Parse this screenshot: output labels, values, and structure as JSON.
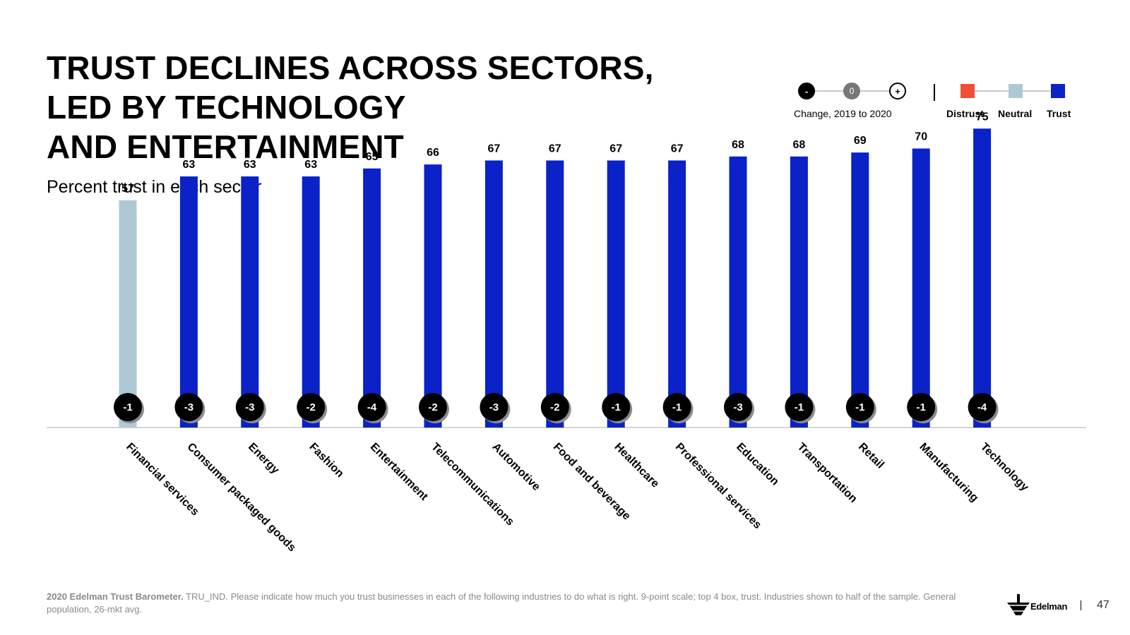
{
  "title": {
    "line1": "TRUST DECLINES ACROSS SECTORS,",
    "line2": "LED BY TECHNOLOGY",
    "line3": "AND ENTERTAINMENT"
  },
  "subtitle": "Percent trust in each sector",
  "legend": {
    "change": {
      "minus_symbol": "-",
      "zero_symbol": "0",
      "plus_symbol": "+",
      "caption": "Change, 2019 to 2020"
    },
    "categories": [
      {
        "label": "Distrust",
        "color": "#f04e37"
      },
      {
        "label": "Neutral",
        "color": "#adc9d3"
      },
      {
        "label": "Trust",
        "color": "#0a22c8"
      }
    ]
  },
  "chart_data": {
    "type": "bar",
    "title": "Percent trust in each sector",
    "xlabel": "",
    "ylabel": "",
    "ylim": [
      0,
      100
    ],
    "categories": [
      "Financial services",
      "Consumer packaged goods",
      "Energy",
      "Fashion",
      "Entertainment",
      "Telecommunications",
      "Automotive",
      "Food and beverage",
      "Healthcare",
      "Professional services",
      "Education",
      "Transportation",
      "Retail",
      "Manufacturing",
      "Technology"
    ],
    "values": [
      57,
      63,
      63,
      63,
      65,
      66,
      67,
      67,
      67,
      67,
      68,
      68,
      69,
      70,
      75
    ],
    "change_2019_to_2020": [
      "-1",
      "-3",
      "-3",
      "-2",
      "-4",
      "-2",
      "-3",
      "-2",
      "-1",
      "-1",
      "-3",
      "-1",
      "-1",
      "-1",
      "-4"
    ],
    "trust_level": [
      "Neutral",
      "Trust",
      "Trust",
      "Trust",
      "Trust",
      "Trust",
      "Trust",
      "Trust",
      "Trust",
      "Trust",
      "Trust",
      "Trust",
      "Trust",
      "Trust",
      "Trust"
    ],
    "colors": {
      "Neutral": "#adc9d3",
      "Trust": "#0a22c8",
      "Distrust": "#f04e37",
      "change_bubble": "#000000"
    }
  },
  "footnote": {
    "source": "2020 Edelman Trust Barometer.",
    "text": "TRU_IND. Please indicate how much you trust businesses in each of the following industries to do what is right. 9-point scale; top 4 box, trust. Industries shown to half of the sample. General population, 26-mkt avg."
  },
  "logo_text": "Edelman",
  "page_number": "47"
}
